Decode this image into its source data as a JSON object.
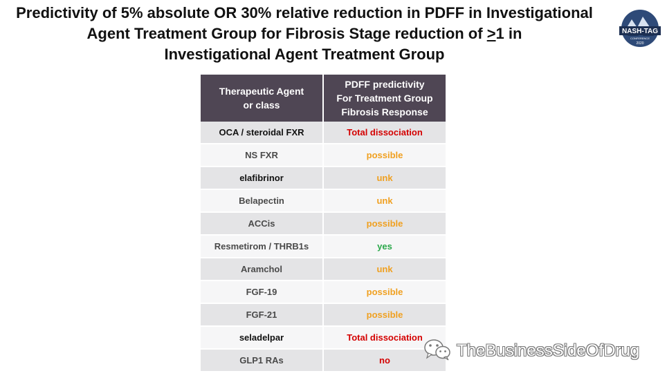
{
  "title": {
    "line1": "Predictivity of 5% absolute OR 30% relative reduction in PDFF in Investigational",
    "line2_before": "Agent Treatment Group for Fibrosis Stage reduction of ",
    "line2_ul": ">",
    "line2_after": "1 in",
    "line3": "Investigational Agent Treatment Group"
  },
  "logo": {
    "text": "NASH-TAG",
    "subtext": "CONFERENCE",
    "year": "2020"
  },
  "table": {
    "headers": {
      "col1": [
        "Therapeutic Agent",
        "or class"
      ],
      "col2": [
        "PDFF predictivity",
        "For Treatment Group",
        "Fibrosis Response"
      ]
    },
    "rows": [
      {
        "agent": "OCA / steroidal FXR",
        "result": "Total dissociation",
        "color": "#d40000"
      },
      {
        "agent": "NS FXR",
        "result": "possible",
        "color": "#f0a020"
      },
      {
        "agent": "elafibrinor",
        "result": "unk",
        "color": "#f0a020"
      },
      {
        "agent": "Belapectin",
        "result": "unk",
        "color": "#f0a020"
      },
      {
        "agent": "ACCis",
        "result": "possible",
        "color": "#f0a020"
      },
      {
        "agent": "Resmetirom / THRB1s",
        "result": "yes",
        "color": "#2aa84a"
      },
      {
        "agent": "Aramchol",
        "result": "unk",
        "color": "#f0a020"
      },
      {
        "agent": "FGF-19",
        "result": "possible",
        "color": "#f0a020"
      },
      {
        "agent": "FGF-21",
        "result": "possible",
        "color": "#f0a020"
      },
      {
        "agent": "seladelpar",
        "result": "Total dissociation",
        "color": "#d40000"
      },
      {
        "agent": "GLP1 RAs",
        "result": "no",
        "color": "#d40000"
      }
    ]
  },
  "watermark": {
    "text": "TheBusinessSideOfDrug",
    "icon": "wechat-icon"
  }
}
